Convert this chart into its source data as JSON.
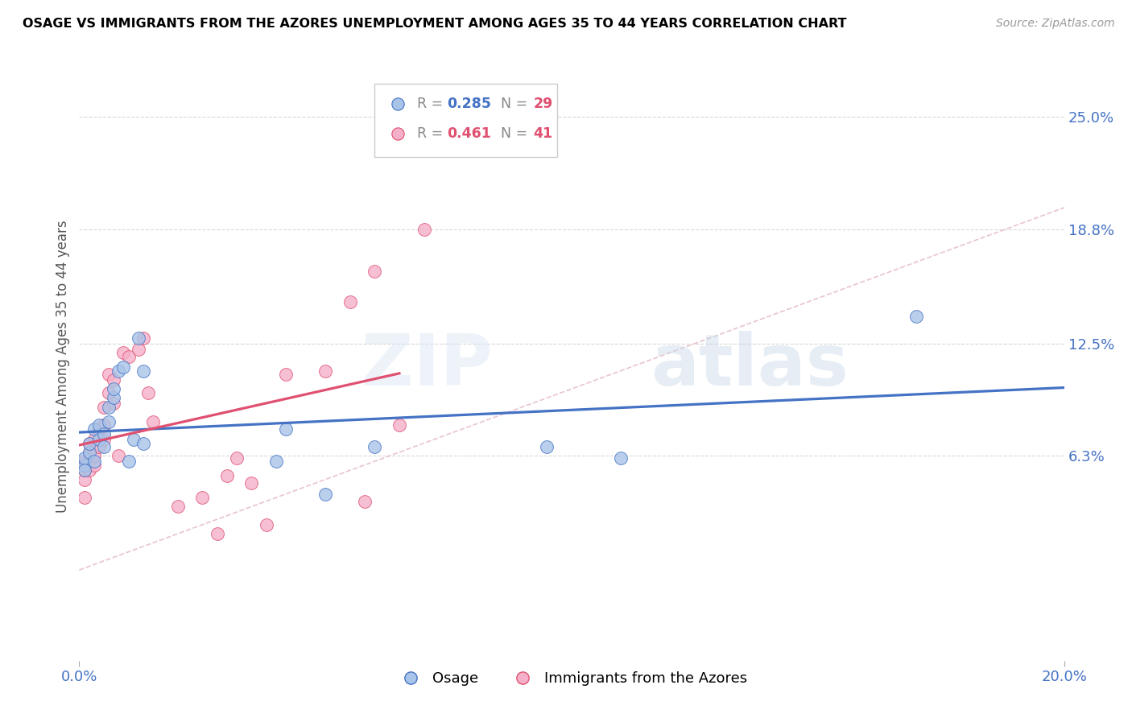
{
  "title": "OSAGE VS IMMIGRANTS FROM THE AZORES UNEMPLOYMENT AMONG AGES 35 TO 44 YEARS CORRELATION CHART",
  "source": "Source: ZipAtlas.com",
  "ylabel": "Unemployment Among Ages 35 to 44 years",
  "right_yticks": [
    "25.0%",
    "18.8%",
    "12.5%",
    "6.3%"
  ],
  "right_ytick_vals": [
    0.25,
    0.188,
    0.125,
    0.063
  ],
  "xmin": 0.0,
  "xmax": 0.2,
  "ymin": -0.05,
  "ymax": 0.275,
  "legend_osage_r": "0.285",
  "legend_osage_n": "29",
  "legend_azores_r": "0.461",
  "legend_azores_n": "41",
  "osage_color": "#a8c4e8",
  "azores_color": "#f4b0c8",
  "trend_osage_color": "#4472c4",
  "trend_azores_color": "#e05070",
  "identity_line_color": "#e0b0c0",
  "watermark_zip": "ZIP",
  "watermark_atlas": "atlas",
  "legend_label_osage": "Osage",
  "legend_label_azores": "Immigrants from the Azores",
  "osage_x": [
    0.001,
    0.001,
    0.001,
    0.002,
    0.002,
    0.003,
    0.003,
    0.004,
    0.004,
    0.005,
    0.005,
    0.006,
    0.006,
    0.007,
    0.007,
    0.008,
    0.009,
    0.01,
    0.011,
    0.012,
    0.013,
    0.013,
    0.04,
    0.042,
    0.05,
    0.06,
    0.095,
    0.11,
    0.17
  ],
  "osage_y": [
    0.058,
    0.062,
    0.055,
    0.065,
    0.07,
    0.06,
    0.078,
    0.072,
    0.08,
    0.068,
    0.075,
    0.082,
    0.09,
    0.095,
    0.1,
    0.11,
    0.112,
    0.06,
    0.072,
    0.128,
    0.11,
    0.07,
    0.06,
    0.078,
    0.042,
    0.068,
    0.068,
    0.062,
    0.14
  ],
  "azores_x": [
    0.001,
    0.001,
    0.001,
    0.001,
    0.002,
    0.002,
    0.002,
    0.002,
    0.003,
    0.003,
    0.003,
    0.004,
    0.004,
    0.005,
    0.005,
    0.005,
    0.006,
    0.006,
    0.007,
    0.007,
    0.008,
    0.009,
    0.01,
    0.012,
    0.013,
    0.014,
    0.015,
    0.02,
    0.025,
    0.028,
    0.03,
    0.032,
    0.035,
    0.038,
    0.042,
    0.05,
    0.055,
    0.058,
    0.06,
    0.065,
    0.07
  ],
  "azores_y": [
    0.04,
    0.05,
    0.055,
    0.06,
    0.055,
    0.06,
    0.065,
    0.07,
    0.058,
    0.063,
    0.072,
    0.068,
    0.078,
    0.072,
    0.08,
    0.09,
    0.098,
    0.108,
    0.092,
    0.105,
    0.063,
    0.12,
    0.118,
    0.122,
    0.128,
    0.098,
    0.082,
    0.035,
    0.04,
    0.02,
    0.052,
    0.062,
    0.048,
    0.025,
    0.108,
    0.11,
    0.148,
    0.038,
    0.165,
    0.08,
    0.188
  ],
  "dpi": 100,
  "grid_color": "#d8d8d8",
  "tick_color": "#4472c4"
}
